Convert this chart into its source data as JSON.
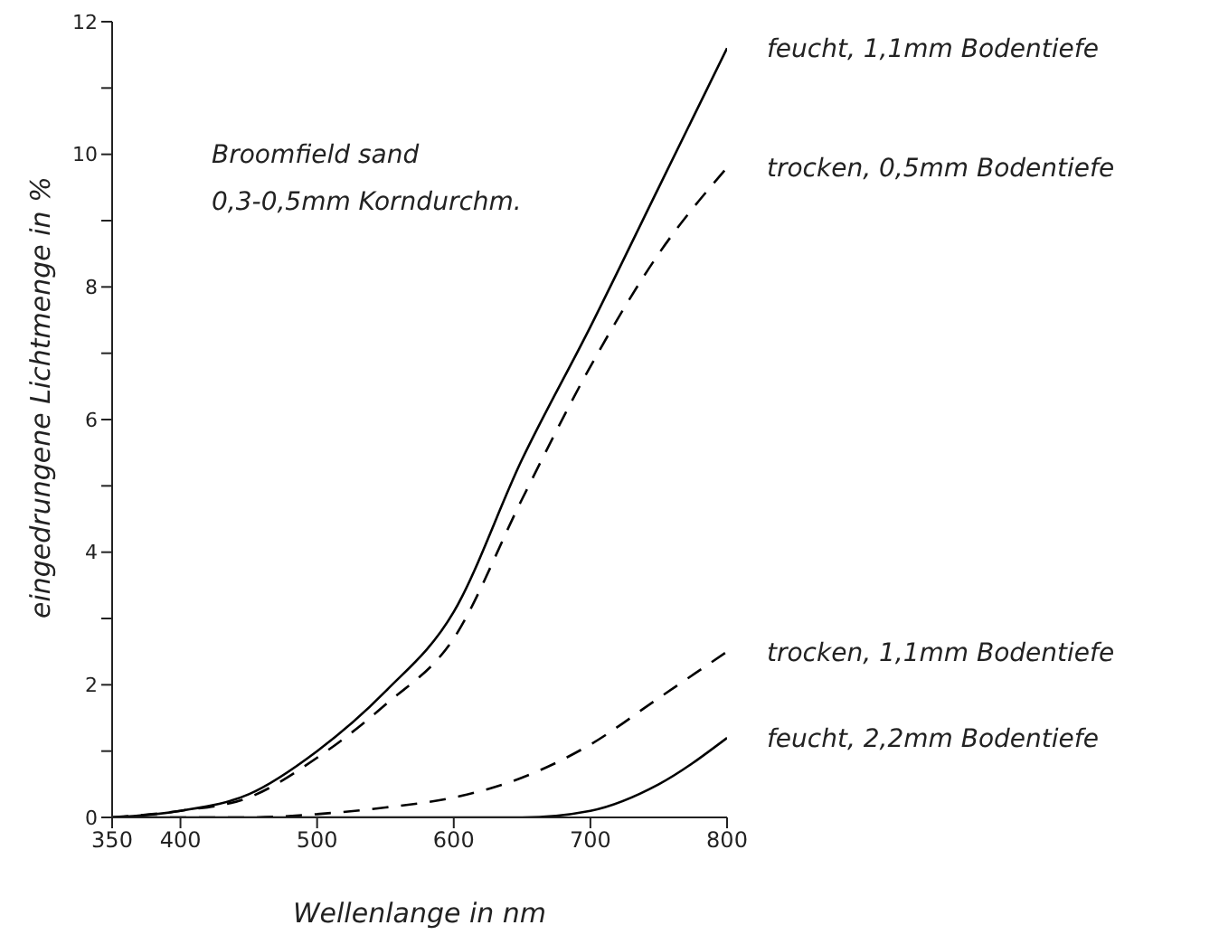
{
  "chart_data": {
    "type": "line",
    "xlabel": "Wellenlange in nm",
    "ylabel": "eingedrungene Lichtmenge in %",
    "annotations": [
      "Broomfield sand",
      "0,3-0,5mm Korndurchm."
    ],
    "x": [
      350,
      400,
      450,
      500,
      550,
      600,
      650,
      700,
      750,
      800
    ],
    "series": [
      {
        "name": "feucht, 1,1mm Bodentiefe",
        "color": "#000000",
        "line_style": "solid",
        "values": [
          0,
          0.1,
          0.35,
          1.0,
          1.9,
          3.1,
          5.4,
          7.4,
          9.5,
          11.6
        ]
      },
      {
        "name": "trocken, 0,5mm Bodentiefe",
        "color": "#000000",
        "line_style": "dashed",
        "values": [
          0,
          0.1,
          0.3,
          0.9,
          1.7,
          2.7,
          4.8,
          6.8,
          8.5,
          9.8
        ]
      },
      {
        "name": "trocken, 1,1mm Bodentiefe",
        "color": "#000000",
        "line_style": "dashed",
        "values": [
          0,
          0,
          0,
          0.05,
          0.15,
          0.3,
          0.6,
          1.1,
          1.8,
          2.5
        ]
      },
      {
        "name": "feucht, 2,2mm Bodentiefe",
        "color": "#000000",
        "line_style": "solid",
        "values": [
          0,
          0,
          0,
          0,
          0,
          0,
          0,
          0.1,
          0.5,
          1.2
        ]
      }
    ],
    "xlim": [
      350,
      800
    ],
    "xticks": [
      350,
      400,
      500,
      600,
      700,
      800
    ],
    "ylim": [
      0,
      12
    ],
    "yticks": [
      0,
      {
        "value": 1,
        "label": null
      },
      2,
      {
        "value": 3,
        "label": null
      },
      4,
      {
        "value": 5,
        "label": null
      },
      6,
      {
        "value": 7,
        "label": null
      },
      8,
      {
        "value": 9,
        "label": null
      },
      10,
      {
        "value": 11,
        "label": null
      },
      12
    ],
    "grid": false,
    "marker": "none"
  }
}
